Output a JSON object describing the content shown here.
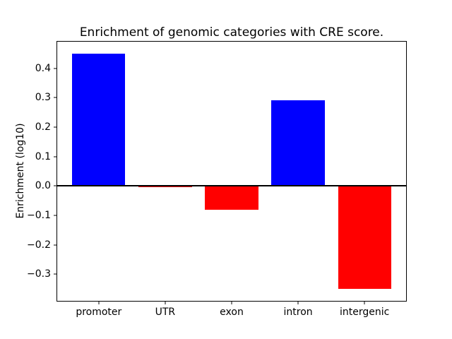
{
  "chart_data": {
    "type": "bar",
    "title": "Enrichment of genomic categories with CRE score.",
    "ylabel": "Enrichment (log10)",
    "xlabel": "",
    "categories": [
      "promoter",
      "UTR",
      "exon",
      "intron",
      "intergenic"
    ],
    "values": [
      0.45,
      -0.005,
      -0.08,
      0.29,
      -0.35
    ],
    "bar_colors": [
      "#0000ff",
      "#ff0000",
      "#ff0000",
      "#0000ff",
      "#ff0000"
    ],
    "colors": {
      "positive_bar": "#0000ff",
      "negative_bar": "#ff0000",
      "axis": "#000000",
      "background": "#ffffff"
    },
    "yticks": [
      0.4,
      0.3,
      0.2,
      0.1,
      0.0,
      -0.1,
      -0.2,
      -0.3
    ],
    "ylim": [
      -0.39,
      0.49
    ],
    "xlim": [
      -0.625,
      4.625
    ],
    "bar_width": 0.8,
    "grid": false,
    "legend": null,
    "zero_line": true
  }
}
